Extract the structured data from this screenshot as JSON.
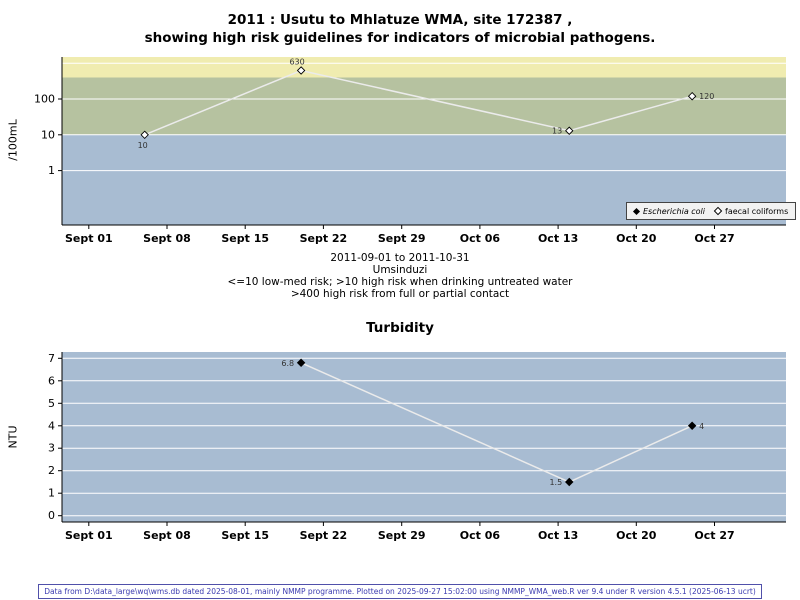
{
  "page": {
    "footer": "Data from D:\\data_large\\wq\\wms.db dated 2025-08-01, mainly NMMP programme. Plotted on 2025-09-27 15:02:00 using NMMP_WMA_web.R ver 9.4 under R version 4.5.1 (2025-06-13 ucrt)"
  },
  "chart_data": [
    {
      "name": "microbial-indicators",
      "type": "line",
      "title_lines": [
        "2011 : Usutu to Mhlatuze WMA, site 172387 ,",
        "showing high risk guidelines for indicators of microbial pathogens."
      ],
      "ylabel": "/100mL",
      "xlabel": "",
      "y_scale": "log",
      "ylim": [
        0.03,
        1500
      ],
      "y_ticks": [
        1,
        10,
        100
      ],
      "y_grid": [
        1,
        10,
        100,
        1000
      ],
      "x_domain_days": [
        -2.4,
        62.4
      ],
      "x_ticks": [
        {
          "label": "Sept 01",
          "day": 0
        },
        {
          "label": "Sept 08",
          "day": 7
        },
        {
          "label": "Sept 15",
          "day": 14
        },
        {
          "label": "Sept 22",
          "day": 21
        },
        {
          "label": "Sept 29",
          "day": 28
        },
        {
          "label": "Oct 06",
          "day": 35
        },
        {
          "label": "Oct 13",
          "day": 42
        },
        {
          "label": "Oct 20",
          "day": 49
        },
        {
          "label": "Oct 27",
          "day": 56
        }
      ],
      "bands": [
        {
          "name": "low-med-risk",
          "from": 0.03,
          "to": 10,
          "color": "#a8bcd2"
        },
        {
          "name": "high-risk-untreated-drinking",
          "from": 10,
          "to": 400,
          "color": "#b6c2a0"
        },
        {
          "name": "high-risk-full-partial-contact",
          "from": 400,
          "to": 1500,
          "color": "#f0ecb0"
        }
      ],
      "series": [
        {
          "name": "Escherichia coli",
          "marker": "filled-diamond",
          "points": []
        },
        {
          "name": "faecal coliforms",
          "marker": "open-diamond",
          "points": [
            {
              "date": "2011-09-06",
              "day": 5,
              "value": 10,
              "label": "10",
              "label_pos": "below"
            },
            {
              "date": "2011-09-20",
              "day": 19,
              "value": 630,
              "label": "630",
              "label_pos": "above"
            },
            {
              "date": "2011-10-14",
              "day": 43,
              "value": 13,
              "label": "13",
              "label_pos": "left"
            },
            {
              "date": "2011-10-25",
              "day": 54,
              "value": 120,
              "label": "120",
              "label_pos": "right"
            }
          ]
        }
      ],
      "legend": {
        "position": "bottom-right",
        "entries": [
          {
            "label": "Escherichia coli",
            "marker": "filled-diamond"
          },
          {
            "label": "faecal coliforms",
            "marker": "open-diamond"
          }
        ]
      },
      "subtitle_lines": [
        "2011-09-01 to 2011-10-31",
        "Umsinduzi",
        "<=10 low-med risk; >10 high risk when drinking untreated water",
        ">400 high risk from full or partial contact"
      ]
    },
    {
      "name": "turbidity",
      "type": "line",
      "title": "Turbidity",
      "ylabel": "NTU",
      "xlabel": "",
      "y_scale": "linear",
      "ylim": [
        -0.28,
        7.28
      ],
      "y_ticks": [
        0,
        1,
        2,
        3,
        4,
        5,
        6,
        7
      ],
      "y_grid": [
        0,
        1,
        2,
        3,
        4,
        5,
        6,
        7
      ],
      "x_domain_days": [
        -2.4,
        62.4
      ],
      "x_ticks": [
        {
          "label": "Sept 01",
          "day": 0
        },
        {
          "label": "Sept 08",
          "day": 7
        },
        {
          "label": "Sept 15",
          "day": 14
        },
        {
          "label": "Sept 22",
          "day": 21
        },
        {
          "label": "Sept 29",
          "day": 28
        },
        {
          "label": "Oct 06",
          "day": 35
        },
        {
          "label": "Oct 13",
          "day": 42
        },
        {
          "label": "Oct 20",
          "day": 49
        },
        {
          "label": "Oct 27",
          "day": 56
        }
      ],
      "bands": [
        {
          "name": "plot-background",
          "from": -0.28,
          "to": 7.28,
          "color": "#a8bcd2"
        }
      ],
      "series": [
        {
          "name": "turbidity",
          "marker": "filled-diamond",
          "points": [
            {
              "date": "2011-09-20",
              "day": 19,
              "value": 6.8,
              "label": "6.8",
              "label_pos": "left"
            },
            {
              "date": "2011-10-14",
              "day": 43,
              "value": 1.5,
              "label": "1.5",
              "label_pos": "left"
            },
            {
              "date": "2011-10-25",
              "day": 54,
              "value": 4,
              "label": "4",
              "label_pos": "right"
            }
          ]
        }
      ]
    }
  ]
}
